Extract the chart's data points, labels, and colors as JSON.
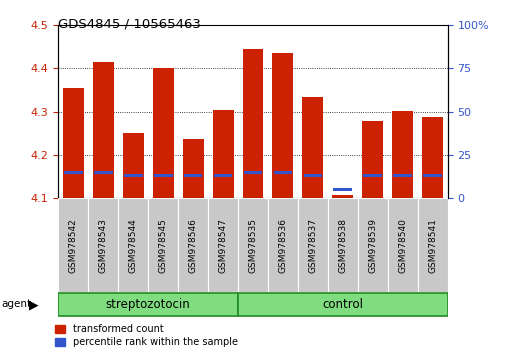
{
  "title": "GDS4845 / 10565463",
  "samples": [
    "GSM978542",
    "GSM978543",
    "GSM978544",
    "GSM978545",
    "GSM978546",
    "GSM978547",
    "GSM978535",
    "GSM978536",
    "GSM978537",
    "GSM978538",
    "GSM978539",
    "GSM978540",
    "GSM978541"
  ],
  "n_strep": 6,
  "n_control": 7,
  "red_values": [
    4.355,
    4.415,
    4.25,
    4.4,
    4.237,
    4.303,
    4.445,
    4.435,
    4.333,
    4.107,
    4.277,
    4.302,
    4.288
  ],
  "blue_percentile": [
    15,
    15,
    13,
    13,
    13,
    13,
    15,
    15,
    13,
    5,
    13,
    13,
    13
  ],
  "ylim_left": [
    4.1,
    4.5
  ],
  "ylim_right": [
    0,
    100
  ],
  "yticks_left": [
    4.1,
    4.2,
    4.3,
    4.4,
    4.5
  ],
  "yticks_right": [
    0,
    25,
    50,
    75,
    100
  ],
  "bar_color_red": "#CC2200",
  "bar_color_blue": "#3355CC",
  "bar_width": 0.7,
  "streptozotocin_label": "streptozotocin",
  "control_label": "control",
  "legend_red": "transformed count",
  "legend_blue": "percentile rank within the sample",
  "tick_color_left": "#CC2200",
  "tick_color_right": "#3355CC",
  "gray_bg": "#c8c8c8",
  "green_bg": "#7FDD7F",
  "green_edge": "#228B22"
}
